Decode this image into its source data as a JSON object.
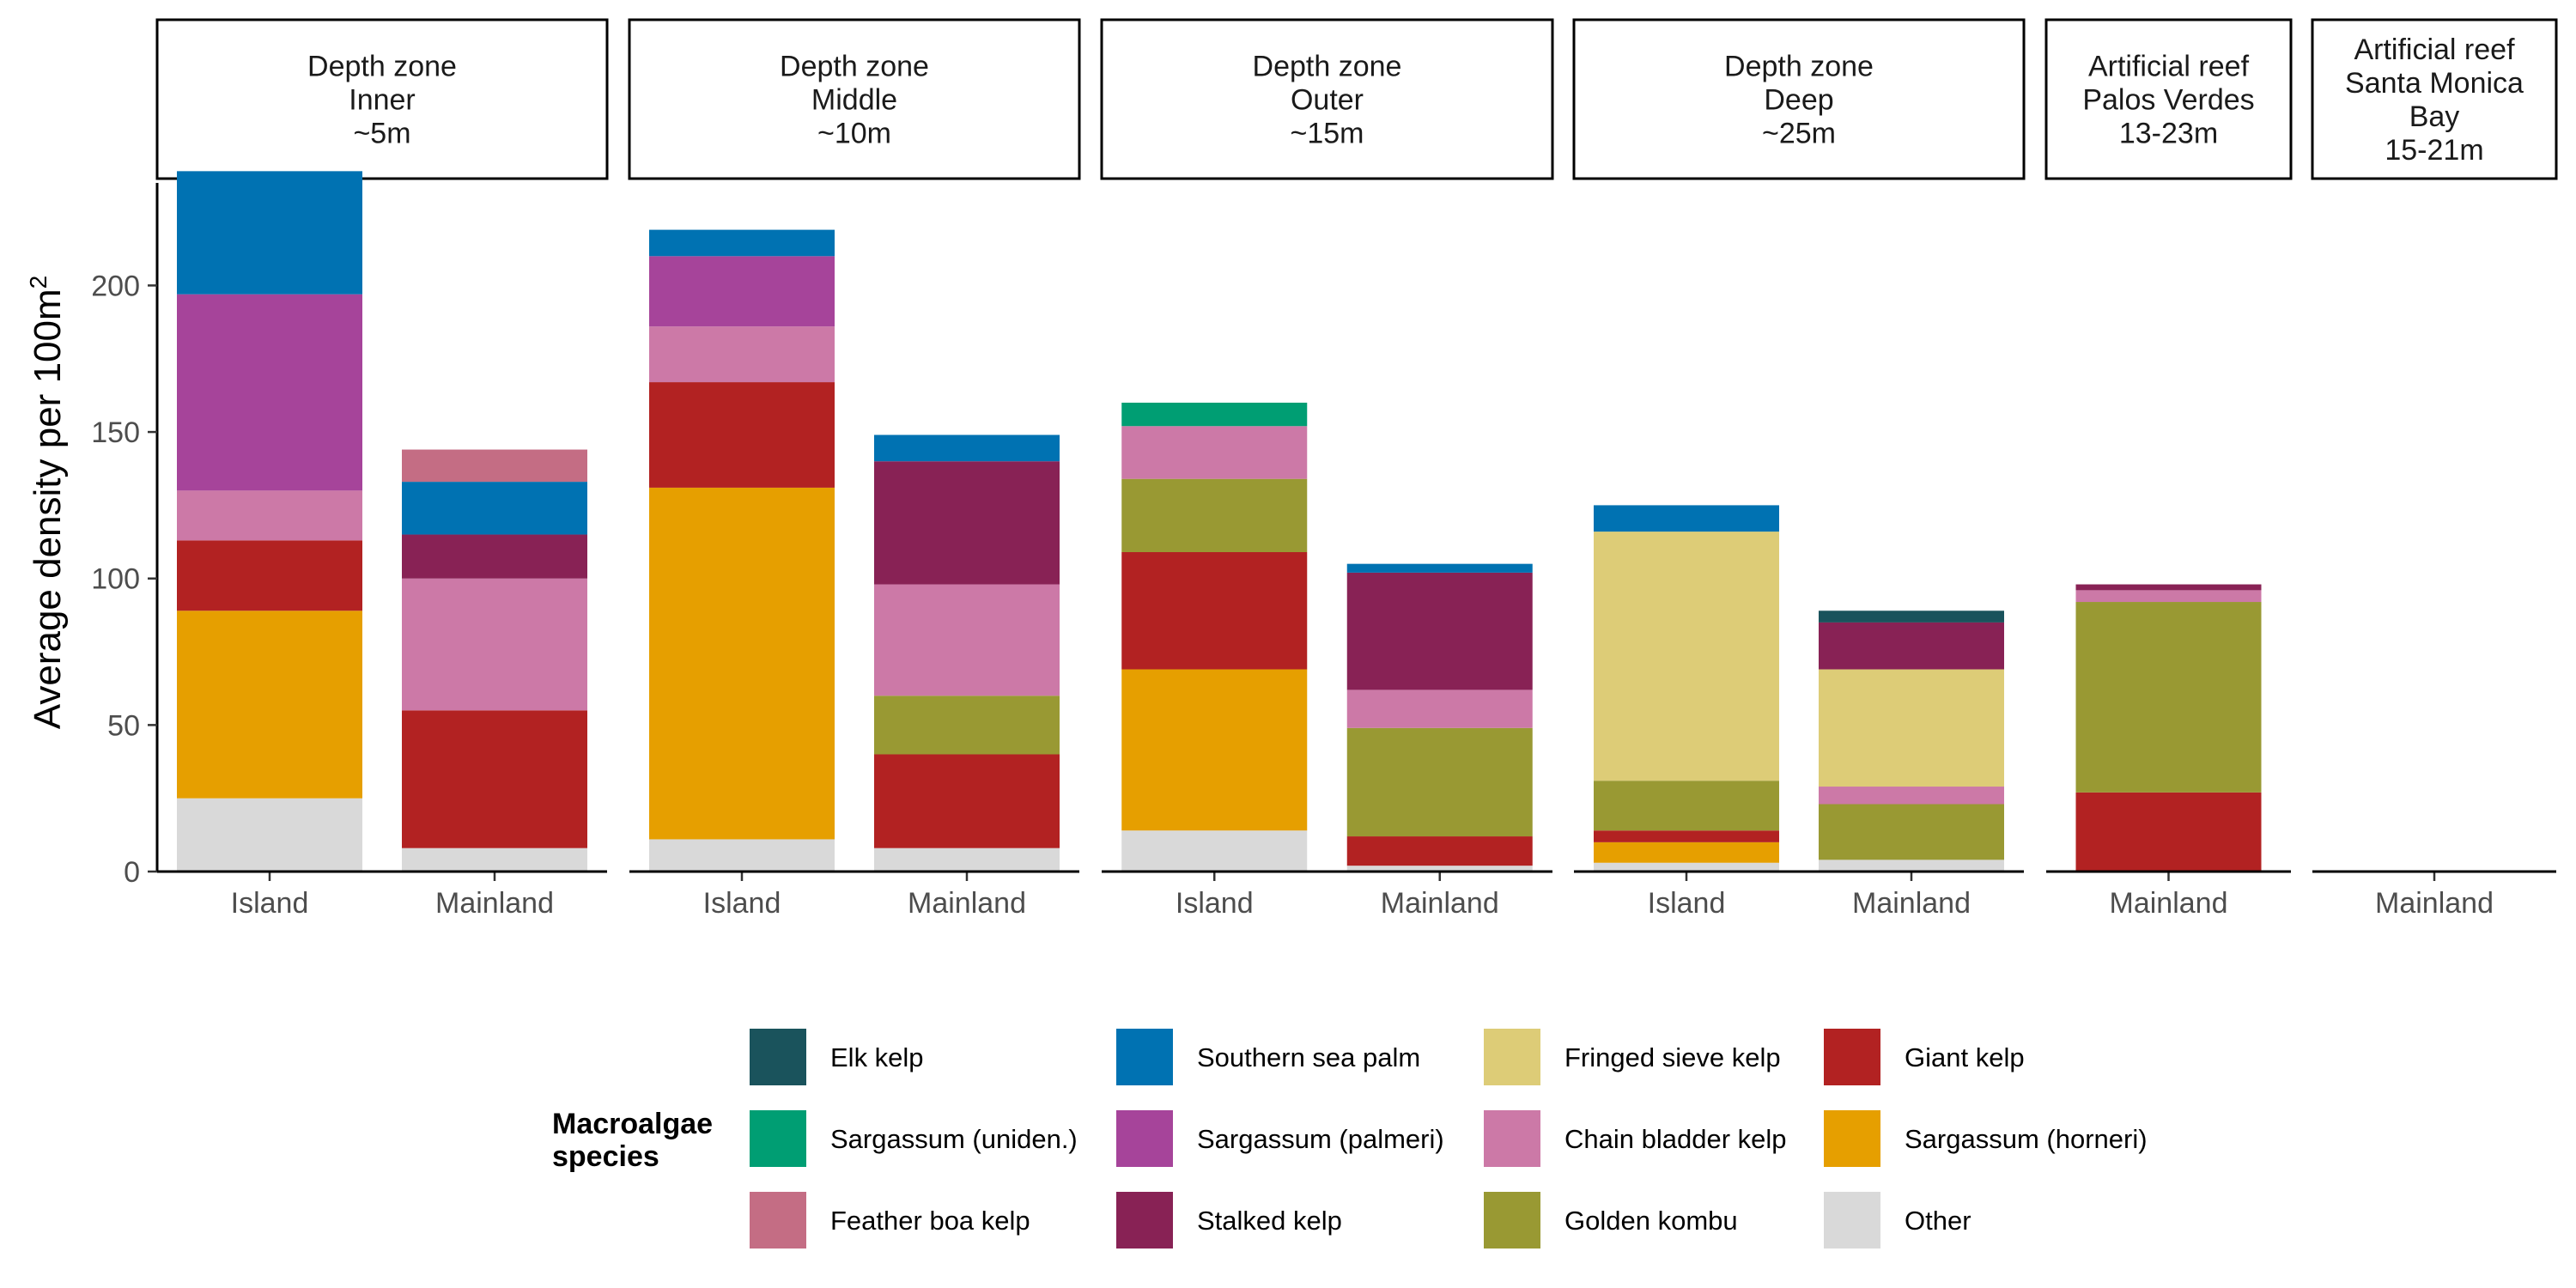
{
  "chart_data": {
    "type": "bar",
    "stacked": true,
    "ylabel": "Average density per 100m",
    "ylabel_superscript": "2",
    "ylim": [
      0,
      235
    ],
    "yticks": [
      0,
      50,
      100,
      150,
      200
    ],
    "grid": false,
    "legend_title_line1": "Macroalgae",
    "legend_title_line2": "species",
    "legend_position": "bottom",
    "series_order": [
      "Other",
      "Sargassum (horneri)",
      "Giant kelp",
      "Golden kombu",
      "Chain bladder kelp",
      "Fringed sieve kelp",
      "Stalked kelp",
      "Sargassum (palmeri)",
      "Southern sea palm",
      "Feather boa kelp",
      "Sargassum (uniden.)",
      "Elk kelp"
    ],
    "colors": {
      "Elk kelp": "#1a535c",
      "Sargassum (uniden.)": "#009e73",
      "Feather boa kelp": "#c46d84",
      "Southern sea palm": "#0072b2",
      "Sargassum (palmeri)": "#a6449a",
      "Stalked kelp": "#882255",
      "Fringed sieve kelp": "#ddcc77",
      "Chain bladder kelp": "#cc79a7",
      "Golden kombu": "#999933",
      "Giant kelp": "#b22222",
      "Sargassum (horneri)": "#e69f00",
      "Other": "#d9d9d9"
    },
    "legend_columns": [
      [
        "Elk kelp",
        "Sargassum (uniden.)",
        "Feather boa kelp"
      ],
      [
        "Southern sea palm",
        "Sargassum (palmeri)",
        "Stalked kelp"
      ],
      [
        "Fringed sieve kelp",
        "Chain bladder kelp",
        "Golden kombu"
      ],
      [
        "Giant kelp",
        "Sargassum (horneri)",
        "Other"
      ]
    ],
    "panels": [
      {
        "strip": [
          "Depth zone",
          "Inner",
          "~5m"
        ],
        "bars": [
          {
            "category": "Island",
            "segments": {
              "Other": 25,
              "Sargassum (horneri)": 64,
              "Giant kelp": 24,
              "Chain bladder kelp": 17,
              "Sargassum (palmeri)": 67,
              "Southern sea palm": 42
            }
          },
          {
            "category": "Mainland",
            "segments": {
              "Other": 8,
              "Giant kelp": 47,
              "Chain bladder kelp": 45,
              "Stalked kelp": 15,
              "Southern sea palm": 18,
              "Feather boa kelp": 11
            }
          }
        ]
      },
      {
        "strip": [
          "Depth zone",
          "Middle",
          "~10m"
        ],
        "bars": [
          {
            "category": "Island",
            "segments": {
              "Other": 11,
              "Sargassum (horneri)": 120,
              "Giant kelp": 36,
              "Chain bladder kelp": 19,
              "Sargassum (palmeri)": 24,
              "Southern sea palm": 9
            }
          },
          {
            "category": "Mainland",
            "segments": {
              "Other": 8,
              "Giant kelp": 32,
              "Golden kombu": 20,
              "Chain bladder kelp": 38,
              "Stalked kelp": 42,
              "Southern sea palm": 9
            }
          }
        ]
      },
      {
        "strip": [
          "Depth zone",
          "Outer",
          "~15m"
        ],
        "bars": [
          {
            "category": "Island",
            "segments": {
              "Other": 14,
              "Sargassum (horneri)": 55,
              "Giant kelp": 40,
              "Golden kombu": 25,
              "Chain bladder kelp": 18,
              "Sargassum (uniden.)": 8
            }
          },
          {
            "category": "Mainland",
            "segments": {
              "Other": 2,
              "Giant kelp": 10,
              "Golden kombu": 37,
              "Chain bladder kelp": 13,
              "Stalked kelp": 40,
              "Southern sea palm": 3
            }
          }
        ]
      },
      {
        "strip": [
          "Depth zone",
          "Deep",
          "~25m"
        ],
        "bars": [
          {
            "category": "Island",
            "segments": {
              "Other": 3,
              "Sargassum (horneri)": 7,
              "Giant kelp": 4,
              "Golden kombu": 17,
              "Fringed sieve kelp": 85,
              "Southern sea palm": 9
            }
          },
          {
            "category": "Mainland",
            "segments": {
              "Other": 4,
              "Golden kombu": 19,
              "Chain bladder kelp": 6,
              "Fringed sieve kelp": 40,
              "Stalked kelp": 16,
              "Elk kelp": 4
            }
          }
        ]
      },
      {
        "strip": [
          "Artificial reef",
          "Palos Verdes",
          "13-23m"
        ],
        "bars": [
          {
            "category": "Mainland",
            "segments": {
              "Giant kelp": 27,
              "Golden kombu": 65,
              "Chain bladder kelp": 4,
              "Stalked kelp": 2
            }
          }
        ]
      },
      {
        "strip": [
          "Artificial reef",
          "Santa Monica",
          "Bay",
          "15-21m"
        ],
        "bars": [
          {
            "category": "Mainland",
            "segments": {}
          }
        ]
      }
    ]
  }
}
